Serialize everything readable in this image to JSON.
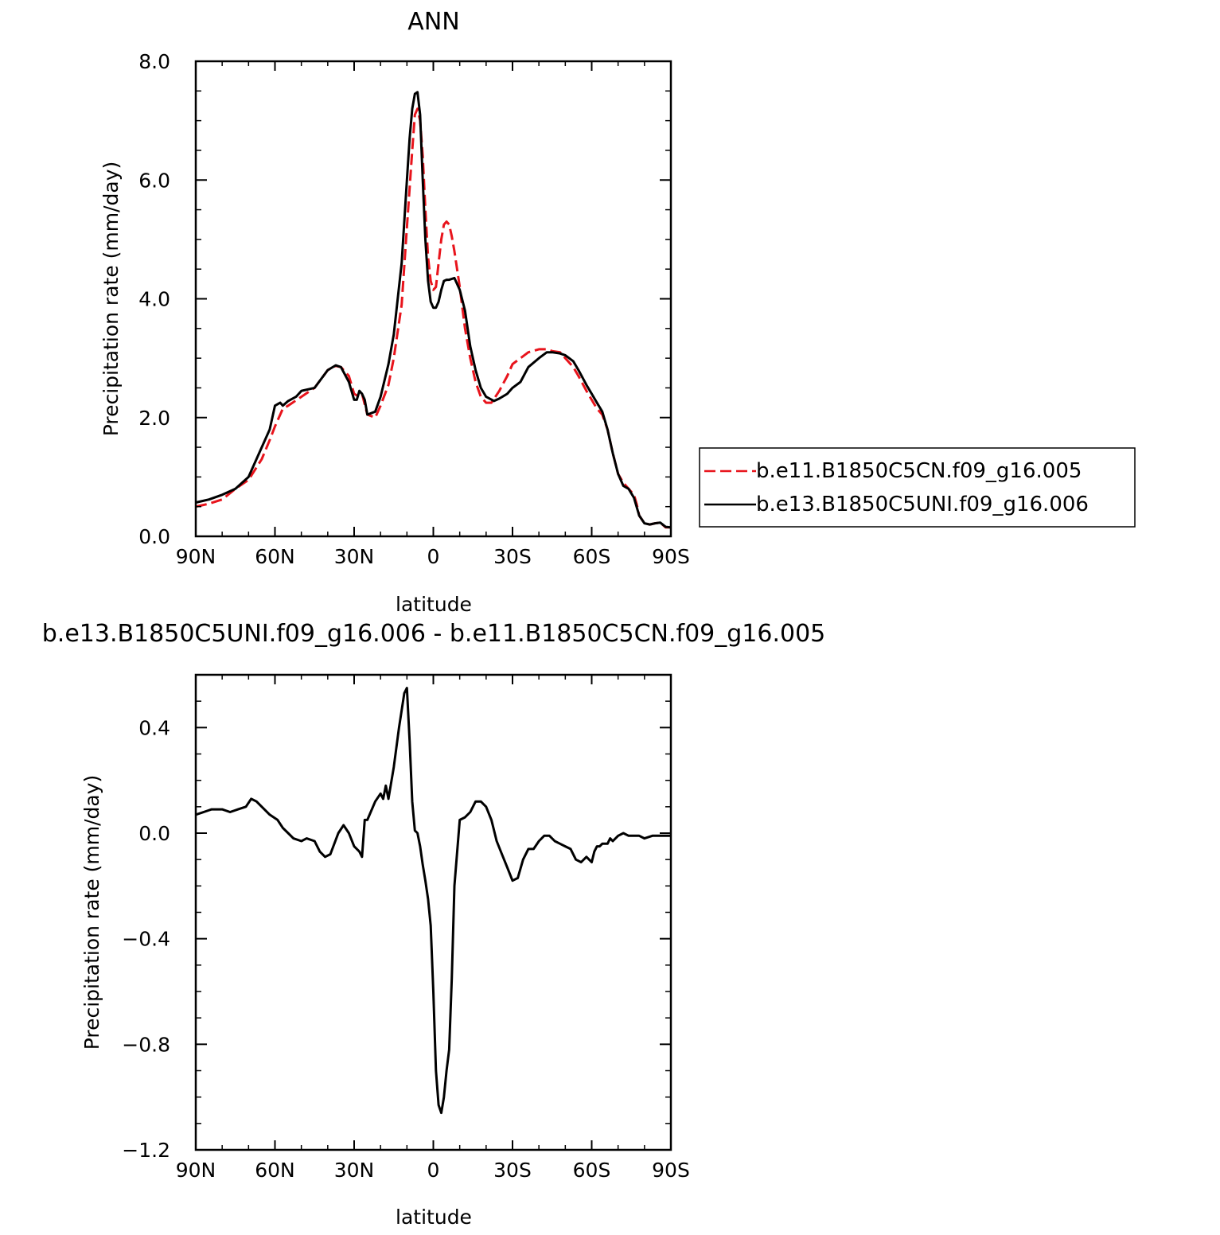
{
  "chart_data": [
    {
      "type": "line",
      "title": "ANN",
      "xlabel": "latitude",
      "ylabel": "Precipitation rate (mm/day)",
      "xlim": [
        90,
        -90
      ],
      "ylim": [
        0,
        8
      ],
      "x_ticks": [
        {
          "value": 90,
          "label": "90N"
        },
        {
          "value": 60,
          "label": "60N"
        },
        {
          "value": 30,
          "label": "30N"
        },
        {
          "value": 0,
          "label": "0"
        },
        {
          "value": -30,
          "label": "30S"
        },
        {
          "value": -60,
          "label": "60S"
        },
        {
          "value": -90,
          "label": "90S"
        }
      ],
      "y_ticks": [
        {
          "value": 0,
          "label": "0.0"
        },
        {
          "value": 2,
          "label": "2.0"
        },
        {
          "value": 4,
          "label": "4.0"
        },
        {
          "value": 6,
          "label": "6.0"
        },
        {
          "value": 8,
          "label": "8.0"
        }
      ],
      "legend_position": "right",
      "series": [
        {
          "name": "b.e11.B1850C5CN.f09_g16.005",
          "color": "#e8141c",
          "dash": "dashed",
          "x": [
            90,
            85,
            80,
            75,
            70,
            65,
            62,
            60,
            57,
            55,
            50,
            45,
            40,
            37,
            35,
            32,
            30,
            28,
            27,
            25,
            22,
            20,
            17,
            15,
            12,
            10,
            8,
            7,
            6,
            5,
            4,
            3,
            2,
            1,
            0,
            -1,
            -2,
            -3,
            -4,
            -5,
            -6,
            -7,
            -8,
            -10,
            -12,
            -14,
            -16,
            -18,
            -20,
            -22,
            -25,
            -28,
            -30,
            -33,
            -36,
            -40,
            -43,
            -45,
            -48,
            -50,
            -53,
            -55,
            -58,
            -60,
            -62,
            -64,
            -66,
            -68,
            -70,
            -72,
            -74,
            -76,
            -77,
            -78,
            -80,
            -82,
            -84,
            -86,
            -88,
            -90
          ],
          "y": [
            0.5,
            0.55,
            0.62,
            0.8,
            0.95,
            1.3,
            1.62,
            1.85,
            2.15,
            2.2,
            2.35,
            2.5,
            2.8,
            2.87,
            2.85,
            2.7,
            2.4,
            2.35,
            2.4,
            2.05,
            2.0,
            2.2,
            2.55,
            3.0,
            3.9,
            5.2,
            6.5,
            7.1,
            7.2,
            7.0,
            6.4,
            5.5,
            4.7,
            4.3,
            4.15,
            4.2,
            4.6,
            5.0,
            5.25,
            5.3,
            5.25,
            5.05,
            4.8,
            4.2,
            3.5,
            3.0,
            2.6,
            2.35,
            2.25,
            2.25,
            2.45,
            2.7,
            2.9,
            3.0,
            3.1,
            3.15,
            3.15,
            3.12,
            3.1,
            3.0,
            2.85,
            2.7,
            2.45,
            2.3,
            2.15,
            2.05,
            1.8,
            1.4,
            1.05,
            0.9,
            0.8,
            0.7,
            0.55,
            0.35,
            0.22,
            0.2,
            0.22,
            0.23,
            0.15,
            0.15
          ]
        },
        {
          "name": "b.e13.B1850C5UNI.f09_g16.006",
          "color": "#000000",
          "dash": "solid",
          "x": [
            90,
            85,
            80,
            75,
            70,
            65,
            62,
            60,
            58,
            57,
            55,
            52,
            50,
            45,
            40,
            37,
            35,
            32,
            30,
            29,
            28,
            27,
            26,
            25,
            22,
            20,
            17,
            15,
            12,
            10,
            9,
            8,
            7,
            6,
            5,
            4,
            3,
            2,
            1,
            0,
            -1,
            -2,
            -3,
            -4,
            -5,
            -6,
            -8,
            -10,
            -12,
            -14,
            -16,
            -18,
            -20,
            -23,
            -25,
            -28,
            -30,
            -33,
            -36,
            -40,
            -43,
            -45,
            -48,
            -50,
            -53,
            -55,
            -58,
            -60,
            -62,
            -64,
            -66,
            -68,
            -70,
            -72,
            -74,
            -76,
            -77,
            -78,
            -80,
            -82,
            -84,
            -86,
            -88,
            -90
          ],
          "y": [
            0.57,
            0.62,
            0.7,
            0.8,
            1.0,
            1.5,
            1.8,
            2.2,
            2.25,
            2.2,
            2.28,
            2.35,
            2.45,
            2.5,
            2.8,
            2.88,
            2.85,
            2.6,
            2.3,
            2.3,
            2.45,
            2.4,
            2.3,
            2.05,
            2.1,
            2.35,
            2.9,
            3.4,
            4.6,
            6.0,
            6.7,
            7.2,
            7.45,
            7.48,
            7.1,
            6.0,
            5.0,
            4.3,
            3.95,
            3.85,
            3.85,
            3.95,
            4.15,
            4.3,
            4.32,
            4.32,
            4.35,
            4.15,
            3.8,
            3.2,
            2.8,
            2.5,
            2.35,
            2.28,
            2.32,
            2.4,
            2.5,
            2.6,
            2.85,
            3.0,
            3.1,
            3.1,
            3.08,
            3.05,
            2.95,
            2.8,
            2.55,
            2.4,
            2.25,
            2.1,
            1.8,
            1.4,
            1.05,
            0.85,
            0.8,
            0.65,
            0.5,
            0.35,
            0.22,
            0.2,
            0.22,
            0.23,
            0.16,
            0.15
          ]
        }
      ]
    },
    {
      "type": "line",
      "title": "b.e13.B1850C5UNI.f09_g16.006 - b.e11.B1850C5CN.f09_g16.005",
      "xlabel": "latitude",
      "ylabel": "Precipitation rate (mm/day)",
      "xlim": [
        90,
        -90
      ],
      "ylim": [
        -1.2,
        0.6
      ],
      "x_ticks": [
        {
          "value": 90,
          "label": "90N"
        },
        {
          "value": 60,
          "label": "60N"
        },
        {
          "value": 30,
          "label": "30N"
        },
        {
          "value": 0,
          "label": "0"
        },
        {
          "value": -30,
          "label": "30S"
        },
        {
          "value": -60,
          "label": "60S"
        },
        {
          "value": -90,
          "label": "90S"
        }
      ],
      "y_ticks": [
        {
          "value": -1.2,
          "label": "−1.2"
        },
        {
          "value": -0.8,
          "label": "−0.8"
        },
        {
          "value": -0.4,
          "label": "−0.4"
        },
        {
          "value": 0,
          "label": "0.0"
        },
        {
          "value": 0.4,
          "label": "0.4"
        }
      ],
      "series": [
        {
          "color": "#000000",
          "dash": "solid",
          "x": [
            90,
            87,
            84,
            80,
            77,
            74,
            71,
            69,
            67,
            65,
            62,
            59,
            57,
            55,
            53,
            50,
            48,
            45,
            43,
            41,
            39,
            36,
            34,
            32,
            30,
            28,
            27,
            26,
            25,
            22,
            20,
            19,
            18,
            17,
            15,
            13,
            11,
            10,
            9,
            8,
            7,
            6,
            5,
            4,
            3,
            2,
            1,
            0,
            -1,
            -2,
            -3,
            -4,
            -5,
            -6,
            -7,
            -8,
            -10,
            -12,
            -14,
            -16,
            -18,
            -20,
            -22,
            -24,
            -26,
            -28,
            -30,
            -32,
            -34,
            -36,
            -38,
            -40,
            -42,
            -44,
            -46,
            -48,
            -50,
            -52,
            -54,
            -56,
            -58,
            -60,
            -61,
            -62,
            -63,
            -64,
            -66,
            -67,
            -68,
            -70,
            -72,
            -74,
            -76,
            -78,
            -80,
            -83,
            -85,
            -88,
            -90
          ],
          "y": [
            0.07,
            0.08,
            0.09,
            0.09,
            0.08,
            0.09,
            0.1,
            0.13,
            0.12,
            0.1,
            0.07,
            0.05,
            0.02,
            0.0,
            -0.02,
            -0.03,
            -0.02,
            -0.03,
            -0.07,
            -0.09,
            -0.08,
            0.0,
            0.03,
            0.0,
            -0.05,
            -0.07,
            -0.09,
            0.05,
            0.05,
            0.12,
            0.15,
            0.13,
            0.18,
            0.13,
            0.25,
            0.4,
            0.53,
            0.55,
            0.35,
            0.12,
            0.01,
            0.0,
            -0.05,
            -0.12,
            -0.18,
            -0.25,
            -0.35,
            -0.6,
            -0.9,
            -1.03,
            -1.06,
            -1.0,
            -0.9,
            -0.82,
            -0.55,
            -0.2,
            0.05,
            0.06,
            0.08,
            0.12,
            0.12,
            0.1,
            0.05,
            -0.03,
            -0.08,
            -0.13,
            -0.18,
            -0.17,
            -0.1,
            -0.06,
            -0.06,
            -0.03,
            -0.01,
            -0.01,
            -0.03,
            -0.04,
            -0.05,
            -0.06,
            -0.1,
            -0.11,
            -0.09,
            -0.11,
            -0.07,
            -0.05,
            -0.05,
            -0.04,
            -0.04,
            -0.02,
            -0.03,
            -0.01,
            0.0,
            -0.01,
            -0.01,
            -0.01,
            -0.02,
            -0.01,
            -0.01,
            -0.01,
            -0.01
          ]
        }
      ]
    }
  ]
}
